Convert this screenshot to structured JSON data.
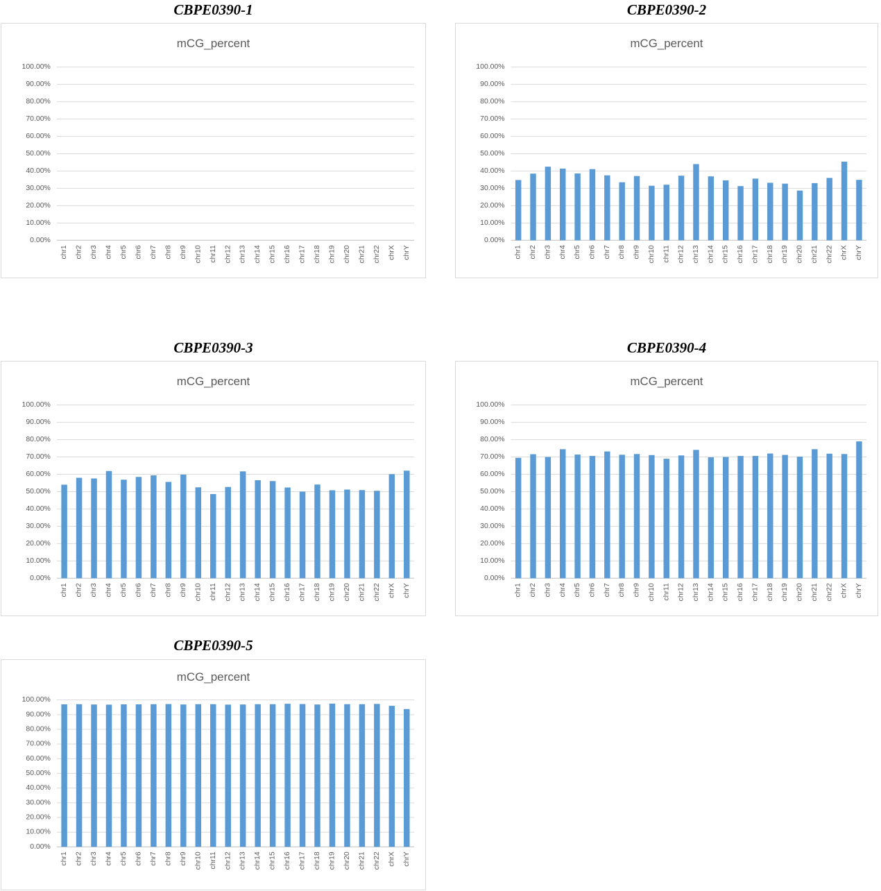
{
  "palette": {
    "bar": "#5B9BD5",
    "gridline": "#D9D9D9",
    "axis_line": "#BFBFBF",
    "tick_label": "#595959",
    "inner_title": "#595959",
    "outer_title": "#000000",
    "frame_border": "#D9D9D9",
    "background": "#FFFFFF"
  },
  "chart_data": [
    {
      "type": "bar",
      "title": "CBPE0390-1",
      "inner_title": "mCG_percent",
      "ylim": [
        0,
        100
      ],
      "ytick_step": 10,
      "ytick_labels": [
        "0.00%",
        "10.00%",
        "20.00%",
        "30.00%",
        "40.00%",
        "50.00%",
        "60.00%",
        "70.00%",
        "80.00%",
        "90.00%",
        "100.00%"
      ],
      "grid": true,
      "legend": false,
      "categories": [
        "chr1",
        "chr2",
        "chr3",
        "chr4",
        "chr5",
        "chr6",
        "chr7",
        "chr8",
        "chr9",
        "chr10",
        "chr11",
        "chr12",
        "chr13",
        "chr14",
        "chr15",
        "chr16",
        "chr17",
        "chr18",
        "chr19",
        "chr20",
        "chr21",
        "chr22",
        "chrX",
        "chrY"
      ],
      "values": null
    },
    {
      "type": "bar",
      "title": "CBPE0390-2",
      "inner_title": "mCG_percent",
      "ylim": [
        0,
        100
      ],
      "ytick_step": 10,
      "ytick_labels": [
        "0.00%",
        "10.00%",
        "20.00%",
        "30.00%",
        "40.00%",
        "50.00%",
        "60.00%",
        "70.00%",
        "80.00%",
        "90.00%",
        "100.00%"
      ],
      "grid": true,
      "legend": false,
      "categories": [
        "chr1",
        "chr2",
        "chr3",
        "chr4",
        "chr5",
        "chr6",
        "chr7",
        "chr8",
        "chr9",
        "chr10",
        "chr11",
        "chr12",
        "chr13",
        "chr14",
        "chr15",
        "chr16",
        "chr17",
        "chr18",
        "chr19",
        "chr20",
        "chr21",
        "chr22",
        "chrX",
        "chrY"
      ],
      "values": [
        34.8,
        38.5,
        42.5,
        41.4,
        38.6,
        41.1,
        37.5,
        33.5,
        37.1,
        31.5,
        32.1,
        37.3,
        44.0,
        36.9,
        34.6,
        31.3,
        35.6,
        33.2,
        32.7,
        28.7,
        33.0,
        36.0,
        45.4,
        34.9
      ]
    },
    {
      "type": "bar",
      "title": "CBPE0390-3",
      "inner_title": "mCG_percent",
      "ylim": [
        0,
        100
      ],
      "ytick_step": 10,
      "ytick_labels": [
        "0.00%",
        "10.00%",
        "20.00%",
        "30.00%",
        "40.00%",
        "50.00%",
        "60.00%",
        "70.00%",
        "80.00%",
        "90.00%",
        "100.00%"
      ],
      "grid": true,
      "legend": false,
      "categories": [
        "chr1",
        "chr2",
        "chr3",
        "chr4",
        "chr5",
        "chr6",
        "chr7",
        "chr8",
        "chr9",
        "chr10",
        "chr11",
        "chr12",
        "chr13",
        "chr14",
        "chr15",
        "chr16",
        "chr17",
        "chr18",
        "chr19",
        "chr20",
        "chr21",
        "chr22",
        "chrX",
        "chrY"
      ],
      "values": [
        54.0,
        58.0,
        57.6,
        61.9,
        56.9,
        58.5,
        59.4,
        55.6,
        59.8,
        52.5,
        48.6,
        52.7,
        61.7,
        56.6,
        56.1,
        52.4,
        50.0,
        54.1,
        50.8,
        51.2,
        50.9,
        50.5,
        60.1,
        62.1
      ]
    },
    {
      "type": "bar",
      "title": "CBPE0390-4",
      "inner_title": "mCG_percent",
      "ylim": [
        0,
        100
      ],
      "ytick_step": 10,
      "ytick_labels": [
        "0.00%",
        "10.00%",
        "20.00%",
        "30.00%",
        "40.00%",
        "50.00%",
        "60.00%",
        "70.00%",
        "80.00%",
        "90.00%",
        "100.00%"
      ],
      "grid": true,
      "legend": false,
      "categories": [
        "chr1",
        "chr2",
        "chr3",
        "chr4",
        "chr5",
        "chr6",
        "chr7",
        "chr8",
        "chr9",
        "chr10",
        "chr11",
        "chr12",
        "chr13",
        "chr14",
        "chr15",
        "chr16",
        "chr17",
        "chr18",
        "chr19",
        "chr20",
        "chr21",
        "chr22",
        "chrX",
        "chrY"
      ],
      "values": [
        69.5,
        71.6,
        70.0,
        74.5,
        71.4,
        70.6,
        73.2,
        71.3,
        71.7,
        71.1,
        69.0,
        70.9,
        74.1,
        69.8,
        70.0,
        70.6,
        70.6,
        72.0,
        71.2,
        70.2,
        74.5,
        71.9,
        71.7,
        79.0
      ]
    },
    {
      "type": "bar",
      "title": "CBPE0390-5",
      "inner_title": "mCG_percent",
      "ylim": [
        0,
        100
      ],
      "ytick_step": 10,
      "ytick_labels": [
        "0.00%",
        "10.00%",
        "20.00%",
        "30.00%",
        "40.00%",
        "50.00%",
        "60.00%",
        "70.00%",
        "80.00%",
        "90.00%",
        "100.00%"
      ],
      "grid": true,
      "legend": false,
      "categories": [
        "chr1",
        "chr2",
        "chr3",
        "chr4",
        "chr5",
        "chr6",
        "chr7",
        "chr8",
        "chr9",
        "chr10",
        "chr11",
        "chr12",
        "chr13",
        "chr14",
        "chr15",
        "chr16",
        "chr17",
        "chr18",
        "chr19",
        "chr20",
        "chr21",
        "chr22",
        "chrX",
        "chrY"
      ],
      "values": [
        97.0,
        97.1,
        96.9,
        96.8,
        97.0,
        97.0,
        97.1,
        97.2,
        96.9,
        97.1,
        97.1,
        96.8,
        96.9,
        97.1,
        97.1,
        97.4,
        97.2,
        96.9,
        97.5,
        97.1,
        97.1,
        97.3,
        96.0,
        93.8
      ]
    }
  ]
}
